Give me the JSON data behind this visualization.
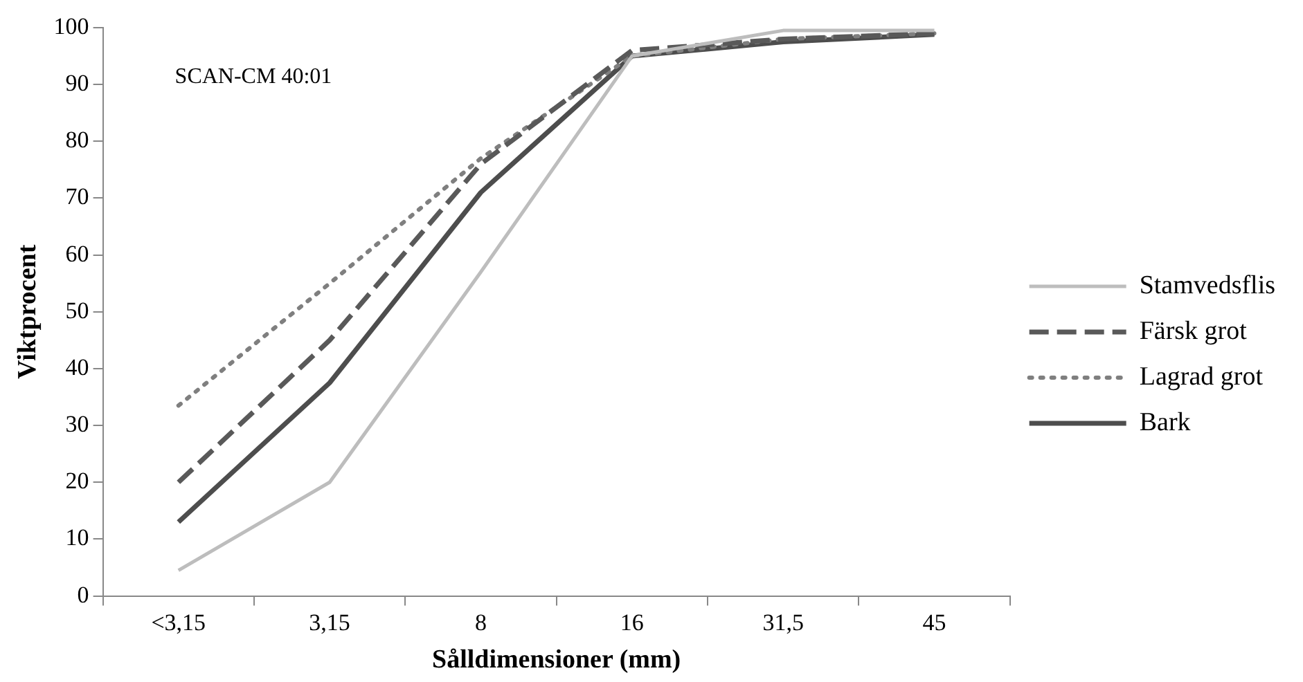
{
  "chart_data": {
    "type": "line",
    "xlabel": "Sålldimensioner (mm)",
    "ylabel": "Viktprocent",
    "annotations": [
      "SCAN-CM 40:01"
    ],
    "categories": [
      "<3,15",
      "3,15",
      "8",
      "16",
      "31,5",
      "45"
    ],
    "ylim": [
      0,
      100
    ],
    "yticks": [
      0,
      10,
      20,
      30,
      40,
      50,
      60,
      70,
      80,
      90,
      100
    ],
    "grid": false,
    "legend": "right",
    "marker": "none",
    "series": [
      {
        "name": "Stamvedsflis",
        "color": "#bdbdbd",
        "line_style": "solid",
        "values": [
          4.5,
          20,
          57,
          95,
          99.5,
          99.5
        ]
      },
      {
        "name": "Färsk grot",
        "color": "#595959",
        "line_style": "dashed",
        "values": [
          20,
          45,
          76,
          96,
          98,
          99
        ]
      },
      {
        "name": "Lagrad grot",
        "color": "#7f7f7f",
        "line_style": "dotted",
        "values": [
          33.5,
          55,
          77,
          95,
          98,
          99
        ]
      },
      {
        "name": "Bark",
        "color": "#4d4d4d",
        "line_style": "solid",
        "values": [
          13,
          37.5,
          71,
          95,
          97.5,
          98.8
        ]
      }
    ]
  }
}
